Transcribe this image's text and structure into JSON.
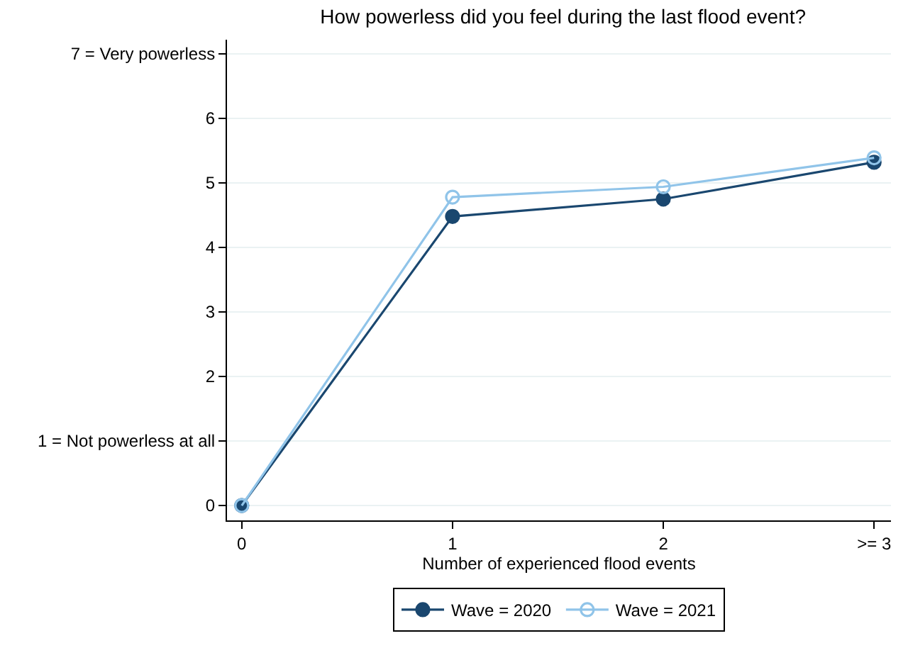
{
  "chart_data": {
    "type": "line",
    "title": "How powerless did you feel during the last flood event?",
    "xlabel": "Number of experienced flood events",
    "x": [
      0,
      1,
      2,
      3
    ],
    "series": [
      {
        "name": "Wave = 2020",
        "color": "#1a476f",
        "values": [
          0,
          4.48,
          4.75,
          5.32
        ]
      },
      {
        "name": "Wave = 2021",
        "color": "#90c4e9",
        "values": [
          0,
          4.78,
          4.94,
          5.39
        ]
      }
    ],
    "xlim": [
      -0.07,
      3.08
    ],
    "xticks": [
      0,
      1,
      2,
      {
        "value": 3,
        "label": ">= 3"
      }
    ],
    "ylim": [
      -0.23,
      7.22
    ],
    "yticks": [
      0,
      {
        "value": 1,
        "label": "1 = Not powerless at all"
      },
      2,
      3,
      4,
      5,
      6,
      {
        "value": 7,
        "label": "7 = Very powerless"
      }
    ],
    "grid": "y",
    "legend": "bottom",
    "marker": "circle",
    "line_style": "solid"
  }
}
